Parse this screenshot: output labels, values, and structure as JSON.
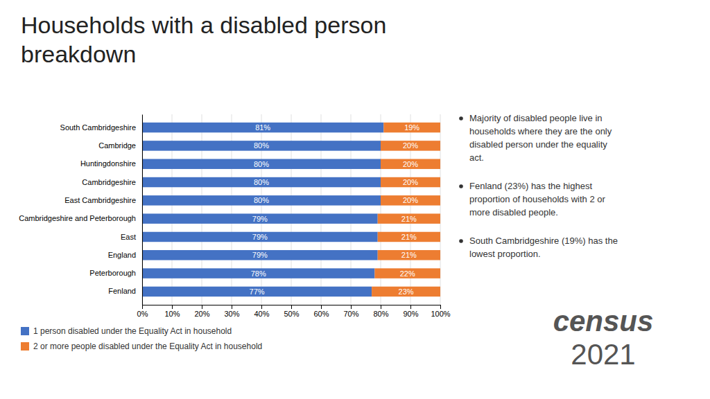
{
  "chart_data": {
    "type": "bar",
    "orientation": "horizontal",
    "stacked": true,
    "title": "Households with a disabled person breakdown",
    "categories": [
      "South Cambridgeshire",
      "Cambridge",
      "Huntingdonshire",
      "Cambridgeshire",
      "East Cambridgeshire",
      "Cambridgeshire and Peterborough",
      "East",
      "England",
      "Peterborough",
      "Fenland"
    ],
    "series": [
      {
        "name": "1 person disabled under the Equality Act in household",
        "color": "#4472C4",
        "values": [
          81,
          80,
          80,
          80,
          80,
          79,
          79,
          79,
          78,
          77
        ],
        "value_labels": [
          "81%",
          "80%",
          "80%",
          "80%",
          "80%",
          "79%",
          "79%",
          "79%",
          "78%",
          "77%"
        ]
      },
      {
        "name": "2 or more people disabled under the Equality Act in household",
        "color": "#ED7D31",
        "values": [
          19,
          20,
          20,
          20,
          20,
          21,
          21,
          21,
          22,
          23
        ],
        "value_labels": [
          "19%",
          "20%",
          "20%",
          "20%",
          "20%",
          "21%",
          "21%",
          "21%",
          "22%",
          "23%"
        ]
      }
    ],
    "xlim": [
      0,
      100
    ],
    "xticks": [
      {
        "value": 0,
        "label": "0%"
      },
      {
        "value": 10,
        "label": "10%"
      },
      {
        "value": 20,
        "label": "20%"
      },
      {
        "value": 30,
        "label": "30%"
      },
      {
        "value": 40,
        "label": "40%"
      },
      {
        "value": 50,
        "label": "50%"
      },
      {
        "value": 60,
        "label": "60%"
      },
      {
        "value": 70,
        "label": "70%"
      },
      {
        "value": 80,
        "label": "80%"
      },
      {
        "value": 90,
        "label": "90%"
      },
      {
        "value": 100,
        "label": "100%"
      }
    ],
    "grid": true,
    "data_labels": true,
    "legend": "bottom",
    "annotations": [
      "Majority of disabled people live in\nhouseholds where they are the only\ndisabled person under the equality\nact.",
      "Fenland (23%) has the highest\nproportion of households with 2 or\nmore disabled people.",
      "South Cambridgeshire (19%) has the\nlowest proportion.",
      "census\n2021"
    ]
  }
}
